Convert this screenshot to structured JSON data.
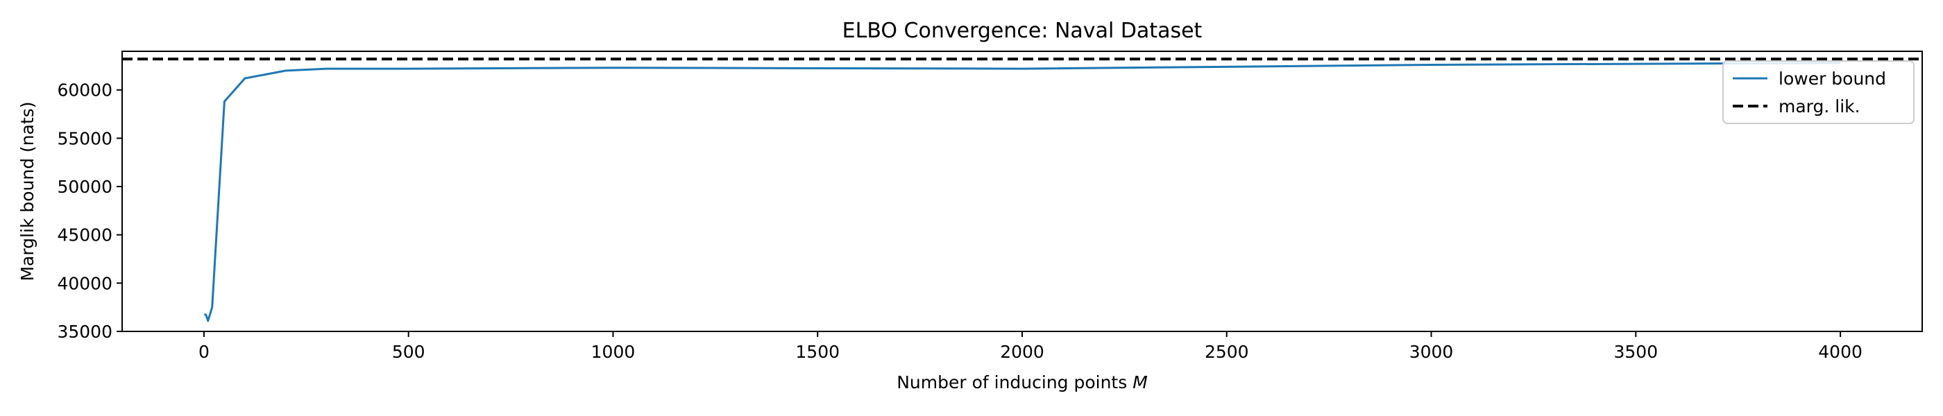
{
  "chart_data": {
    "type": "line",
    "title": "ELBO Convergence: Naval Dataset",
    "xlabel": "Number of inducing points",
    "xlabel_var": "M",
    "ylabel": "Marglik bound (nats)",
    "xlim": [
      -200,
      4200
    ],
    "ylim": [
      35000,
      64000
    ],
    "xticks": [
      0,
      500,
      1000,
      1500,
      2000,
      2500,
      3000,
      3500,
      4000
    ],
    "yticks": [
      35000,
      40000,
      45000,
      50000,
      55000,
      60000
    ],
    "grid": false,
    "legend_position": "top-right",
    "series": [
      {
        "name": "lower bound",
        "color": "#1f77b4",
        "style": "solid",
        "x": [
          1,
          5,
          10,
          20,
          50,
          100,
          200,
          300,
          500,
          1000,
          2000,
          3000,
          4000
        ],
        "y": [
          36800,
          36700,
          36100,
          37500,
          58800,
          61200,
          62000,
          62200,
          62200,
          62300,
          62200,
          62600,
          62800
        ]
      },
      {
        "name": "marg. lik.",
        "color": "#000000",
        "style": "dashed",
        "x": [
          -200,
          4200
        ],
        "y": [
          63200,
          63200
        ]
      }
    ]
  }
}
